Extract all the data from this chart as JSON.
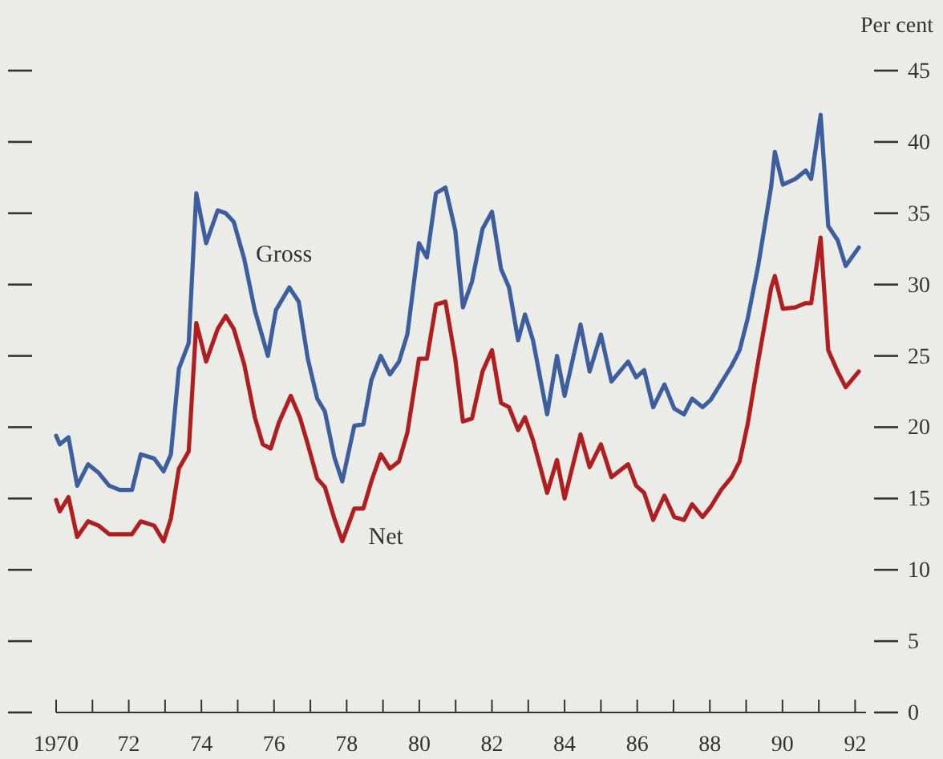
{
  "chart_data": {
    "type": "line",
    "ylabel": "Per cent",
    "xlim": [
      1970,
      1992.3
    ],
    "xticks": [
      {
        "value": 1970,
        "label": "1970"
      },
      {
        "value": 1971,
        "label": null
      },
      {
        "value": 1972,
        "label": "72"
      },
      {
        "value": 1973,
        "label": null
      },
      {
        "value": 1974,
        "label": "74"
      },
      {
        "value": 1975,
        "label": null
      },
      {
        "value": 1976,
        "label": "76"
      },
      {
        "value": 1977,
        "label": null
      },
      {
        "value": 1978,
        "label": "78"
      },
      {
        "value": 1979,
        "label": null
      },
      {
        "value": 1980,
        "label": "80"
      },
      {
        "value": 1981,
        "label": null
      },
      {
        "value": 1982,
        "label": "82"
      },
      {
        "value": 1983,
        "label": null
      },
      {
        "value": 1984,
        "label": "84"
      },
      {
        "value": 1985,
        "label": null
      },
      {
        "value": 1986,
        "label": "86"
      },
      {
        "value": 1987,
        "label": null
      },
      {
        "value": 1988,
        "label": "88"
      },
      {
        "value": 1989,
        "label": null
      },
      {
        "value": 1990,
        "label": "90"
      },
      {
        "value": 1991,
        "label": null
      },
      {
        "value": 1992,
        "label": "92"
      }
    ],
    "ylim": [
      0,
      45
    ],
    "yticks": [
      0,
      5,
      10,
      15,
      20,
      25,
      30,
      35,
      40,
      45
    ],
    "grid": false,
    "legend": false,
    "line_style": "solid",
    "marker": "none",
    "series": [
      {
        "name": "Gross",
        "color": "#3d5f9e",
        "x": [
          1970.0,
          1970.1,
          1970.34,
          1970.58,
          1970.88,
          1971.17,
          1971.46,
          1971.75,
          1972.09,
          1972.33,
          1972.7,
          1972.96,
          1973.16,
          1973.38,
          1973.65,
          1973.86,
          1974.13,
          1974.45,
          1974.67,
          1974.89,
          1975.18,
          1975.47,
          1975.83,
          1976.05,
          1976.42,
          1976.68,
          1976.93,
          1977.19,
          1977.4,
          1977.66,
          1977.88,
          1978.21,
          1978.46,
          1978.68,
          1978.94,
          1979.19,
          1979.44,
          1979.67,
          1979.99,
          1980.21,
          1980.46,
          1980.72,
          1980.99,
          1981.2,
          1981.45,
          1981.74,
          1982.0,
          1982.25,
          1982.47,
          1982.72,
          1982.91,
          1983.13,
          1983.52,
          1983.79,
          1984.0,
          1984.44,
          1984.69,
          1985.0,
          1985.29,
          1985.75,
          1985.97,
          1986.19,
          1986.44,
          1986.75,
          1987.02,
          1987.29,
          1987.51,
          1987.8,
          1988.02,
          1988.31,
          1988.6,
          1988.82,
          1989.04,
          1989.33,
          1989.69,
          1989.79,
          1990.01,
          1990.35,
          1990.64,
          1990.79,
          1991.05,
          1991.26,
          1991.52,
          1991.74,
          1992.1
        ],
        "values": [
          19.4,
          18.8,
          19.3,
          15.9,
          17.4,
          16.8,
          15.9,
          15.6,
          15.6,
          18.1,
          17.8,
          16.9,
          18.1,
          24.1,
          25.9,
          36.4,
          32.9,
          35.2,
          35.0,
          34.4,
          31.8,
          28.2,
          25.0,
          28.2,
          29.8,
          28.8,
          24.8,
          22.0,
          21.1,
          17.9,
          16.2,
          20.1,
          20.2,
          23.3,
          25.0,
          23.7,
          24.6,
          26.5,
          32.9,
          31.9,
          36.4,
          36.8,
          33.8,
          28.4,
          30.2,
          33.9,
          35.1,
          31.1,
          29.8,
          26.1,
          27.9,
          26.1,
          20.9,
          25.0,
          22.2,
          27.2,
          23.9,
          26.5,
          23.2,
          24.6,
          23.5,
          24.0,
          21.4,
          23.0,
          21.3,
          20.9,
          22.0,
          21.4,
          21.9,
          23.1,
          24.3,
          25.4,
          27.6,
          31.3,
          36.9,
          39.3,
          37.0,
          37.4,
          38.0,
          37.4,
          41.9,
          34.1,
          33.1,
          31.3,
          32.6
        ]
      },
      {
        "name": "Net",
        "color": "#b01f1f",
        "x": [
          1970.0,
          1970.1,
          1970.34,
          1970.58,
          1970.88,
          1971.17,
          1971.46,
          1972.09,
          1972.33,
          1972.7,
          1972.96,
          1973.16,
          1973.38,
          1973.65,
          1973.86,
          1974.13,
          1974.45,
          1974.67,
          1974.89,
          1975.18,
          1975.47,
          1975.69,
          1975.91,
          1976.13,
          1976.46,
          1976.71,
          1976.93,
          1977.19,
          1977.4,
          1977.66,
          1977.88,
          1978.21,
          1978.46,
          1978.68,
          1978.94,
          1979.19,
          1979.44,
          1979.67,
          1979.99,
          1980.21,
          1980.46,
          1980.72,
          1980.99,
          1981.2,
          1981.45,
          1981.74,
          1982.0,
          1982.25,
          1982.47,
          1982.72,
          1982.91,
          1983.13,
          1983.52,
          1983.79,
          1984.0,
          1984.44,
          1984.69,
          1985.0,
          1985.29,
          1985.75,
          1985.97,
          1986.19,
          1986.44,
          1986.75,
          1987.02,
          1987.29,
          1987.51,
          1987.8,
          1988.02,
          1988.31,
          1988.6,
          1988.82,
          1989.04,
          1989.33,
          1989.69,
          1989.79,
          1990.01,
          1990.35,
          1990.64,
          1990.79,
          1991.05,
          1991.26,
          1991.52,
          1991.74,
          1992.1
        ],
        "values": [
          14.9,
          14.1,
          15.1,
          12.3,
          13.4,
          13.1,
          12.5,
          12.5,
          13.4,
          13.1,
          12.0,
          13.6,
          17.1,
          18.3,
          27.3,
          24.6,
          26.9,
          27.8,
          26.9,
          24.4,
          20.7,
          18.8,
          18.5,
          20.3,
          22.2,
          20.7,
          18.8,
          16.4,
          15.8,
          13.6,
          12.0,
          14.3,
          14.3,
          16.2,
          18.1,
          17.1,
          17.6,
          19.6,
          24.8,
          24.8,
          28.6,
          28.8,
          24.8,
          20.4,
          20.6,
          23.9,
          25.4,
          21.7,
          21.4,
          19.8,
          20.7,
          19.1,
          15.4,
          17.7,
          15.0,
          19.5,
          17.2,
          18.8,
          16.5,
          17.4,
          15.9,
          15.4,
          13.5,
          15.2,
          13.7,
          13.5,
          14.6,
          13.7,
          14.4,
          15.6,
          16.5,
          17.6,
          20.2,
          24.6,
          29.8,
          30.6,
          28.3,
          28.4,
          28.7,
          28.7,
          33.3,
          25.4,
          23.9,
          22.8,
          23.9
        ]
      }
    ]
  }
}
